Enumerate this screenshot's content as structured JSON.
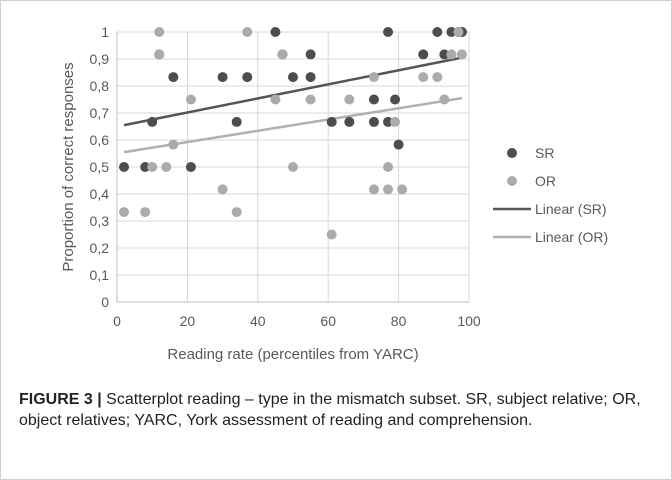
{
  "chart_data": {
    "type": "scatter",
    "xlabel": "Reading rate (percentiles from YARC)",
    "ylabel": "Proportion of correct responses",
    "xlim": [
      0,
      100
    ],
    "ylim": [
      0,
      1
    ],
    "x_ticks": [
      "0",
      "20",
      "40",
      "60",
      "80",
      "100"
    ],
    "y_ticks": [
      "0",
      "0,1",
      "0,2",
      "0,3",
      "0,4",
      "0,5",
      "0,6",
      "0,7",
      "0,8",
      "0,9",
      "1"
    ],
    "grid": true,
    "legend_position": "right",
    "series": [
      {
        "name": "SR",
        "color": "#4d4d4d",
        "points": [
          [
            2,
            0.5
          ],
          [
            8,
            0.5
          ],
          [
            10,
            0.667
          ],
          [
            12,
            0.917
          ],
          [
            16,
            0.833
          ],
          [
            21,
            0.5
          ],
          [
            30,
            0.833
          ],
          [
            34,
            0.667
          ],
          [
            37,
            0.833
          ],
          [
            45,
            1.0
          ],
          [
            47,
            0.917
          ],
          [
            50,
            0.833
          ],
          [
            55,
            0.917
          ],
          [
            55,
            0.833
          ],
          [
            61,
            0.667
          ],
          [
            66,
            0.667
          ],
          [
            73,
            0.75
          ],
          [
            73,
            0.667
          ],
          [
            77,
            1.0
          ],
          [
            77,
            0.667
          ],
          [
            79,
            0.75
          ],
          [
            80,
            0.583
          ],
          [
            87,
            0.917
          ],
          [
            91,
            1.0
          ],
          [
            93,
            0.917
          ],
          [
            95,
            1.0
          ],
          [
            97,
            1.0
          ],
          [
            98,
            1.0
          ]
        ]
      },
      {
        "name": "OR",
        "color": "#ababab",
        "points": [
          [
            2,
            0.333
          ],
          [
            8,
            0.333
          ],
          [
            10,
            0.5
          ],
          [
            12,
            1.0
          ],
          [
            12,
            0.917
          ],
          [
            14,
            0.5
          ],
          [
            16,
            0.583
          ],
          [
            21,
            0.75
          ],
          [
            30,
            0.417
          ],
          [
            34,
            0.333
          ],
          [
            37,
            1.0
          ],
          [
            45,
            0.75
          ],
          [
            47,
            0.917
          ],
          [
            50,
            0.5
          ],
          [
            55,
            0.75
          ],
          [
            61,
            0.25
          ],
          [
            66,
            0.75
          ],
          [
            73,
            0.833
          ],
          [
            73,
            0.417
          ],
          [
            77,
            0.5
          ],
          [
            77,
            0.417
          ],
          [
            79,
            0.667
          ],
          [
            81,
            0.417
          ],
          [
            87,
            0.833
          ],
          [
            91,
            0.833
          ],
          [
            93,
            0.75
          ],
          [
            95,
            0.917
          ],
          [
            97,
            1.0
          ],
          [
            98,
            0.917
          ]
        ]
      },
      {
        "name": "Linear (SR)",
        "type": "trendline",
        "color": "#555555",
        "x": [
          2,
          98
        ],
        "y": [
          0.655,
          0.905
        ]
      },
      {
        "name": "Linear (OR)",
        "type": "trendline",
        "color": "#b0b0b0",
        "x": [
          2,
          98
        ],
        "y": [
          0.555,
          0.755
        ]
      }
    ]
  },
  "caption": {
    "label": "FIGURE 3 |",
    "text": " Scatterplot reading – type in the mismatch subset. SR, subject relative; OR, object relatives; YARC, York assessment of reading and comprehension."
  }
}
